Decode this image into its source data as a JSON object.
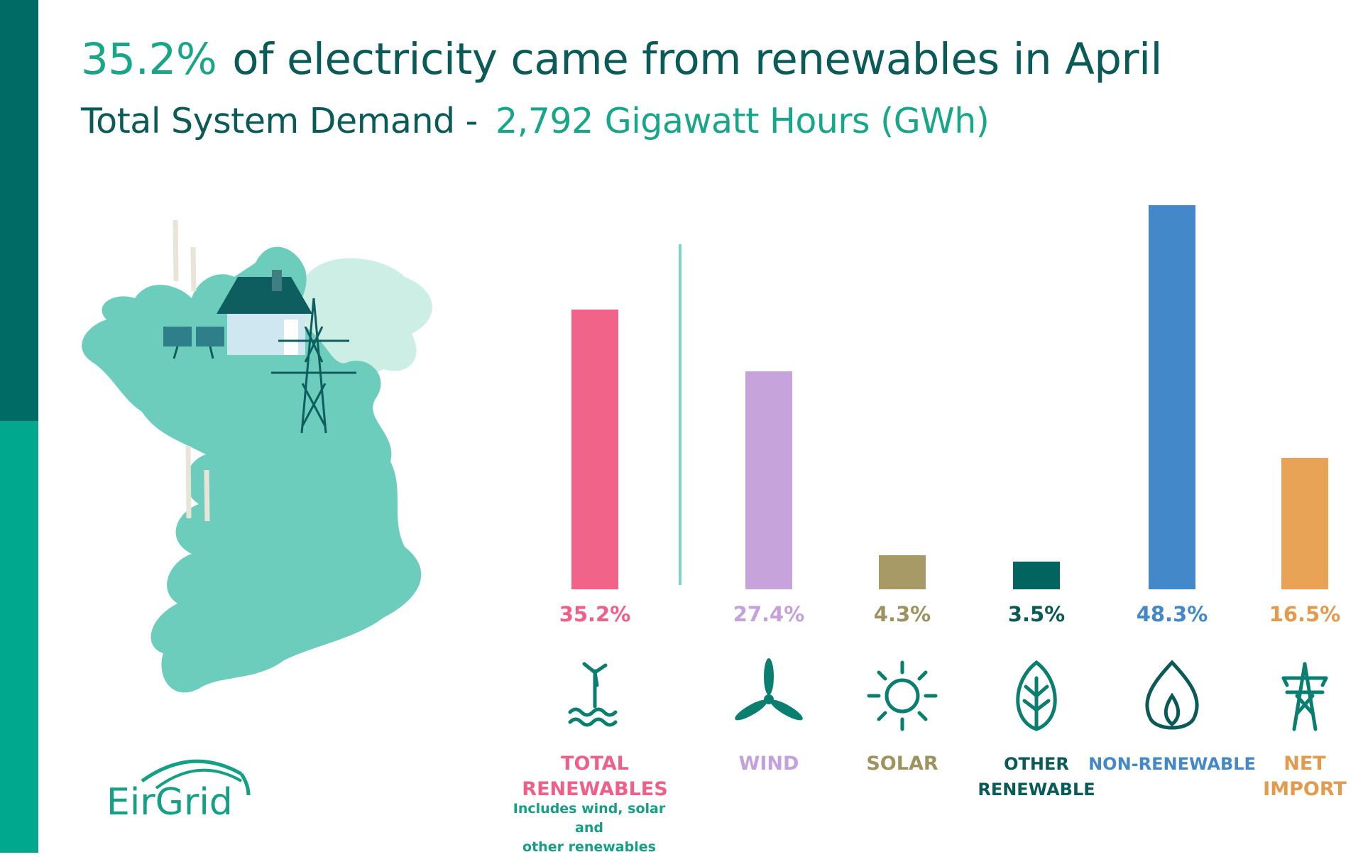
{
  "header": {
    "headline_pct": "35.2%",
    "headline_text": "of electricity came from renewables in April",
    "sub_prefix": "Total System Demand - ",
    "sub_value": "2,792",
    "sub_unit": "Gigawatt Hours (GWh)"
  },
  "logo": {
    "text": "EirGrid"
  },
  "chart_data": {
    "type": "bar",
    "categories": [
      "TOTAL RENEWABLES",
      "WIND",
      "SOLAR",
      "OTHER RENEWABLE",
      "NON-RENEWABLE",
      "NET IMPORT"
    ],
    "values": [
      35.2,
      27.4,
      4.3,
      3.5,
      48.3,
      16.5
    ],
    "value_labels": [
      "35.2%",
      "27.4%",
      "4.3%",
      "3.5%",
      "48.3%",
      "16.5%"
    ],
    "category_labels": [
      "TOTAL\nRENEWABLES",
      "WIND",
      "SOLAR",
      "OTHER\nRENEWABLE",
      "NON-RENEWABLE",
      "NET\nIMPORT"
    ],
    "icons": [
      "offshore-wind-icon",
      "wind-turbine-icon",
      "sun-icon",
      "leaf-icon",
      "flame-icon",
      "pylon-icon"
    ],
    "colors": [
      "#f2638a",
      "#c7a3dc",
      "#a79a66",
      "#02645f",
      "#4388c8",
      "#e8a357"
    ],
    "label_colors": [
      "#ef5f88",
      "#c4a1dc",
      "#9e935f",
      "#0a5a57",
      "#4388c8",
      "#e39a4c"
    ],
    "icon_color": "#0a7f6f",
    "note": "Includes wind, solar and\nother renewables",
    "ylim": [
      0,
      50
    ]
  }
}
